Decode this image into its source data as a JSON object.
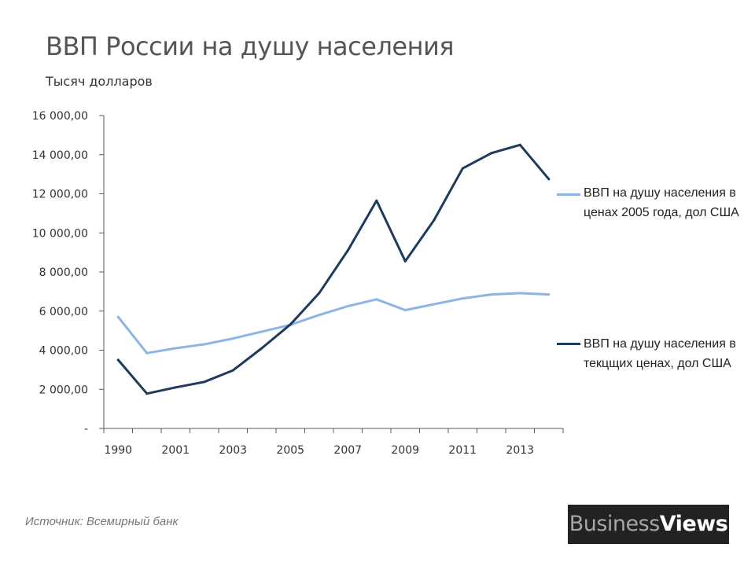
{
  "header": {
    "title": "ВВП России на душу населения",
    "subtitle": "Тысяч долларов"
  },
  "footer": {
    "source": "Источник: Всемирный банк",
    "logo_word1": "Business",
    "logo_word2": "Views"
  },
  "colors": {
    "constant_prices": "#8eb4e3",
    "current_prices": "#1f3a5f",
    "axis": "#595959"
  },
  "chart_data": {
    "type": "line",
    "title": "ВВП России на душу населения",
    "subtitle": "Тысяч долларов",
    "x_tick_labels": [
      "1990",
      "2001",
      "2003",
      "2005",
      "2007",
      "2009",
      "2011",
      "2013"
    ],
    "y_tick_labels": [
      "-",
      "2 000,00",
      "4 000,00",
      "6 000,00",
      "8 000,00",
      "10 000,00",
      "12 000,00",
      "14 000,00",
      "16 000,00"
    ],
    "ylim": [
      0,
      16000
    ],
    "grid": false,
    "legend_position": "right",
    "x": [
      "1990",
      "2000",
      "2001",
      "2002",
      "2003",
      "2004",
      "2005",
      "2006",
      "2007",
      "2008",
      "2009",
      "2010",
      "2011",
      "2012",
      "2013",
      "2014"
    ],
    "series": [
      {
        "name": "ВВП на душу населения в ценах 2005 года, дол США",
        "values": [
          5700,
          3850,
          4100,
          4300,
          4600,
          4950,
          5300,
          5800,
          6250,
          6600,
          6050,
          6350,
          6650,
          6850,
          6920,
          6850
        ]
      },
      {
        "name": "ВВП на душу населения в текцщих ценах, дол США",
        "values": [
          3500,
          1780,
          2100,
          2380,
          2970,
          4100,
          5320,
          6920,
          9100,
          11650,
          8550,
          10650,
          13300,
          14080,
          14500,
          12750
        ]
      }
    ]
  }
}
